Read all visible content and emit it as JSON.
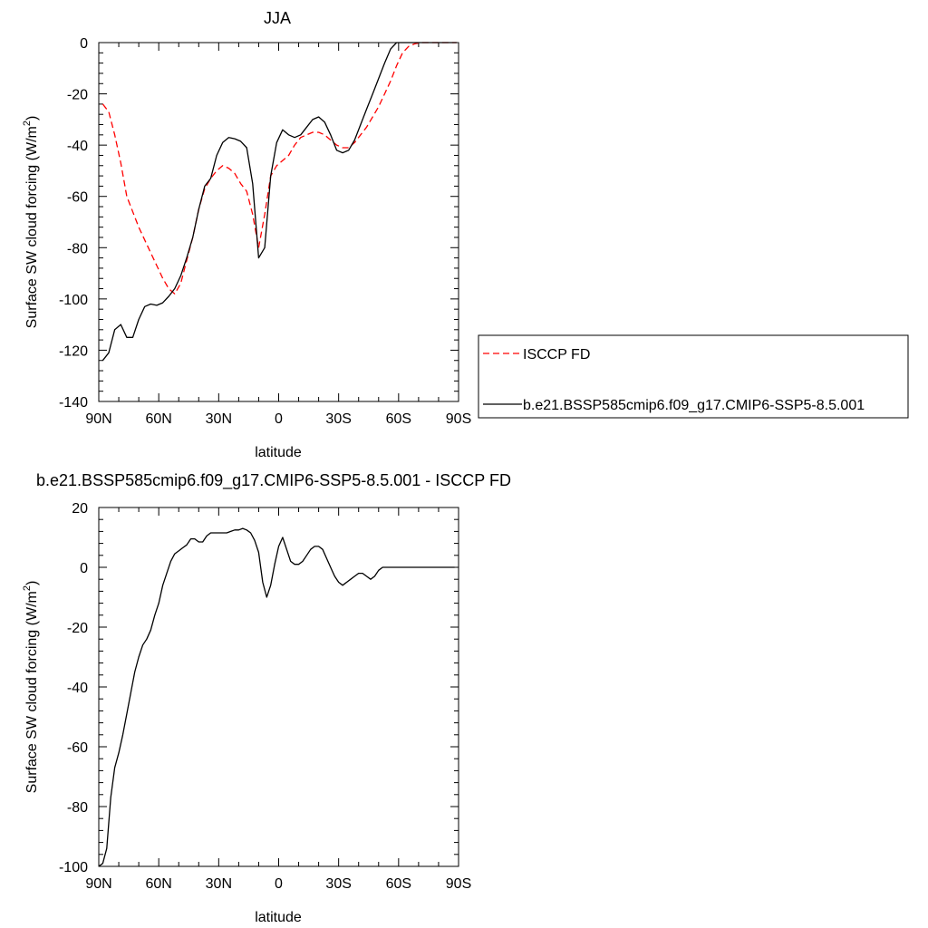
{
  "chart_data": [
    {
      "type": "line",
      "title": "JJA",
      "xlabel": "latitude",
      "ylabel": "Surface SW cloud forcing (W/m",
      "ylabel_sup": "2",
      "ylabel_close": ")",
      "xlim": [
        90,
        -90
      ],
      "ylim": [
        -140,
        0
      ],
      "x_ticks": [
        90,
        60,
        30,
        0,
        -30,
        -60,
        -90
      ],
      "x_tick_labels": [
        "90N",
        "60N",
        "30N",
        "0",
        "30S",
        "60S",
        "90S"
      ],
      "y_ticks": [
        0,
        -20,
        -40,
        -60,
        -80,
        -100,
        -120,
        -140
      ],
      "y_tick_labels": [
        "0",
        "-20",
        "-40",
        "-60",
        "-80",
        "-100",
        "-120",
        "-140"
      ],
      "legend_position": "right",
      "series": [
        {
          "name": "ISCCP FD",
          "color": "#ff0000",
          "dash": "dashed",
          "x": [
            88,
            85,
            82,
            79,
            76,
            73,
            70,
            67,
            64,
            61,
            58,
            55,
            52,
            49,
            46,
            43,
            40,
            37,
            34,
            31,
            28,
            25,
            22,
            19,
            16,
            13,
            10,
            7,
            4,
            1,
            -2,
            -5,
            -8,
            -11,
            -14,
            -17,
            -20,
            -23,
            -26,
            -29,
            -32,
            -35,
            -38,
            -41,
            -44,
            -47,
            -50,
            -53,
            -56,
            -59,
            -62,
            -65,
            -68,
            -71,
            -74,
            -77,
            -80,
            -83,
            -86,
            -89
          ],
          "y": [
            -24,
            -27,
            -36,
            -47,
            -60,
            -66,
            -72,
            -77,
            -82,
            -87,
            -92,
            -96,
            -98,
            -94,
            -85,
            -76,
            -65,
            -57,
            -53,
            -50,
            -48,
            -49,
            -51,
            -55,
            -58,
            -67,
            -80,
            -67,
            -52,
            -48,
            -46,
            -44,
            -40,
            -37,
            -36,
            -35,
            -35,
            -36,
            -38,
            -40,
            -41,
            -41,
            -39,
            -36,
            -33,
            -29,
            -25,
            -20,
            -15,
            -9,
            -4,
            -1.5,
            -0.5,
            0,
            0,
            0,
            0,
            0,
            0,
            0
          ]
        },
        {
          "name": "b.e21.BSSP585cmip6.f09_g17.CMIP6-SSP5-8.5.001",
          "color": "#000000",
          "dash": "solid",
          "x": [
            88,
            85,
            82,
            79,
            76,
            73,
            70,
            67,
            64,
            61,
            58,
            55,
            52,
            49,
            46,
            43,
            40,
            37,
            34,
            31,
            28,
            25,
            22,
            19,
            16,
            13,
            10,
            7,
            4,
            1,
            -2,
            -5,
            -8,
            -11,
            -14,
            -17,
            -20,
            -23,
            -26,
            -29,
            -32,
            -35,
            -38,
            -41,
            -44,
            -47,
            -50,
            -53,
            -56,
            -59,
            -62,
            -65,
            -68,
            -71,
            -74,
            -77,
            -80,
            -83,
            -86,
            -89
          ],
          "y": [
            -124,
            -121,
            -112,
            -110,
            -115,
            -115,
            -108,
            -103,
            -102,
            -102.5,
            -101.5,
            -99,
            -96,
            -91,
            -84,
            -76,
            -65,
            -56,
            -53,
            -44,
            -39,
            -37,
            -37.5,
            -38.5,
            -41,
            -55,
            -84,
            -80,
            -52,
            -39,
            -34,
            -36,
            -37,
            -36,
            -33,
            -30,
            -29,
            -31,
            -36,
            -42,
            -43,
            -42,
            -38,
            -32,
            -26,
            -20,
            -14,
            -8,
            -2.5,
            0,
            0,
            0,
            0,
            0,
            0,
            0,
            0,
            0,
            0,
            0
          ]
        }
      ]
    },
    {
      "type": "line",
      "title": "b.e21.BSSP585cmip6.f09_g17.CMIP6-SSP5-8.5.001 - ISCCP FD",
      "xlabel": "latitude",
      "ylabel": "Surface SW cloud forcing (W/m",
      "ylabel_sup": "2",
      "ylabel_close": ")",
      "xlim": [
        90,
        -90
      ],
      "ylim": [
        -100,
        20
      ],
      "x_ticks": [
        90,
        60,
        30,
        0,
        -30,
        -60,
        -90
      ],
      "x_tick_labels": [
        "90N",
        "60N",
        "30N",
        "0",
        "30S",
        "60S",
        "90S"
      ],
      "y_ticks": [
        20,
        0,
        -20,
        -40,
        -60,
        -80,
        -100
      ],
      "y_tick_labels": [
        "20",
        "0",
        "-20",
        "-40",
        "-60",
        "-80",
        "-100"
      ],
      "series": [
        {
          "color": "#000000",
          "dash": "solid",
          "x": [
            90,
            88,
            86,
            84,
            82,
            80,
            78,
            76,
            74,
            72,
            70,
            68,
            66,
            64,
            62,
            60,
            58,
            56,
            54,
            52,
            50,
            48,
            46,
            44,
            42,
            40,
            38,
            36,
            34,
            32,
            30,
            28,
            26,
            24,
            22,
            20,
            18,
            16,
            14,
            12,
            10,
            8,
            6,
            4,
            2,
            0,
            -2,
            -4,
            -6,
            -8,
            -10,
            -12,
            -14,
            -16,
            -18,
            -20,
            -22,
            -24,
            -26,
            -28,
            -30,
            -32,
            -34,
            -36,
            -38,
            -40,
            -42,
            -44,
            -46,
            -48,
            -50,
            -52,
            -54,
            -56,
            -58,
            -60,
            -62,
            -64,
            -66,
            -68,
            -70,
            -72,
            -74,
            -76,
            -78,
            -80,
            -82,
            -84,
            -86,
            -88
          ],
          "y": [
            -100,
            -99,
            -94,
            -77,
            -67,
            -62,
            -56,
            -49,
            -42,
            -35,
            -30,
            -26,
            -24,
            -21,
            -16,
            -12,
            -6,
            -2,
            2,
            4.5,
            5.5,
            6.5,
            7.5,
            9.5,
            9.5,
            8.5,
            8.5,
            10.5,
            11.5,
            11.5,
            11.5,
            11.5,
            11.5,
            12,
            12.5,
            12.5,
            13,
            12.5,
            11.5,
            9,
            5,
            -5,
            -10,
            -6,
            1,
            7,
            10,
            6,
            2,
            1,
            1,
            2,
            4,
            6,
            7,
            7,
            6,
            3,
            0,
            -3,
            -5,
            -6,
            -5,
            -4,
            -3,
            -2,
            -2,
            -3,
            -4,
            -3,
            -1,
            0,
            0,
            0,
            0,
            0,
            0,
            0,
            0,
            0,
            0,
            0,
            0,
            0,
            0,
            0,
            0,
            0,
            0,
            0
          ]
        }
      ]
    }
  ]
}
